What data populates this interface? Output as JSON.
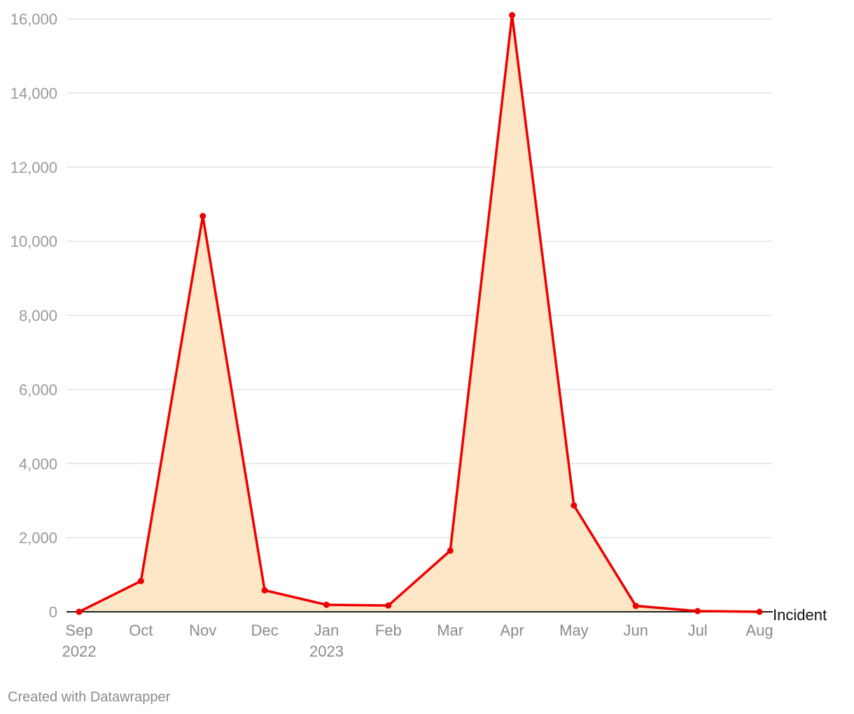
{
  "chart_data": {
    "type": "area",
    "x": [
      "Sep 2022",
      "Oct 2022",
      "Nov 2022",
      "Dec 2022",
      "Jan 2023",
      "Feb 2023",
      "Mar 2023",
      "Apr 2023",
      "May 2023",
      "Jun 2023",
      "Jul 2023",
      "Aug 2023"
    ],
    "tick_labels": [
      {
        "month": "Sep",
        "year": "2022"
      },
      {
        "month": "Oct",
        "year": ""
      },
      {
        "month": "Nov",
        "year": ""
      },
      {
        "month": "Dec",
        "year": ""
      },
      {
        "month": "Jan",
        "year": "2023"
      },
      {
        "month": "Feb",
        "year": ""
      },
      {
        "month": "Mar",
        "year": ""
      },
      {
        "month": "Apr",
        "year": ""
      },
      {
        "month": "May",
        "year": ""
      },
      {
        "month": "Jun",
        "year": ""
      },
      {
        "month": "Jul",
        "year": ""
      },
      {
        "month": "Aug",
        "year": ""
      }
    ],
    "series": [
      {
        "name": "Incident",
        "values": [
          0,
          830,
          10680,
          580,
          190,
          170,
          1650,
          16100,
          2870,
          160,
          20,
          0
        ]
      }
    ],
    "y_ticks": [
      0,
      2000,
      4000,
      6000,
      8000,
      10000,
      12000,
      14000,
      16000
    ],
    "y_tick_labels": [
      "0",
      "2,000",
      "4,000",
      "6,000",
      "8,000",
      "10,000",
      "12,000",
      "14,000",
      "16,000"
    ],
    "ylim": [
      0,
      16000
    ],
    "grid": true,
    "colors": {
      "line": "#ee0000",
      "fill": "#fde7c6",
      "grid": "#e2e2e2",
      "baseline": "#222222"
    }
  },
  "footer": {
    "credit": "Created with Datawrapper"
  }
}
